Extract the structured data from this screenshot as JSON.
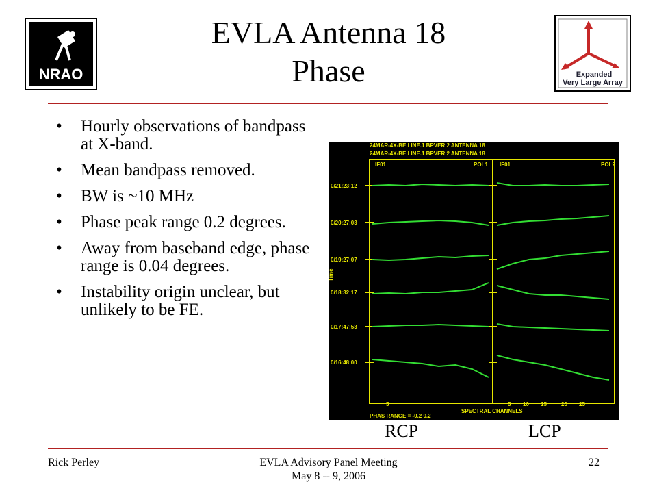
{
  "title": {
    "line1": "EVLA Antenna 18",
    "line2": "Phase"
  },
  "logos": {
    "nrao": "NRAO",
    "evla_line1": "Expanded",
    "evla_line2": "Very Large Array"
  },
  "bullets": [
    "Hourly observations of bandpass at X-band.",
    "Mean bandpass removed.",
    "BW is ~10 MHz",
    "Phase peak range 0.2 degrees.",
    "Away from baseband edge, phase range is 0.04 degrees.",
    "Instability origin unclear, but unlikely to be FE."
  ],
  "plot": {
    "header_top": "24MAR-4X-BE.LINE.1 BPVER 2 ANTENNA 18",
    "if_left": "IF01",
    "pol_left": "POL1",
    "if_right": "IF01",
    "pol_right": "POL2",
    "time_labels": [
      "0/21:23:12",
      "0/20:27:03",
      "0/19:27:07",
      "0/18:32:17",
      "0/17:47:53",
      "0/16:48:00"
    ],
    "x_ticks_left": [
      "5"
    ],
    "x_ticks_right": [
      "5",
      "10",
      "15",
      "20",
      "25"
    ],
    "xlabel": "SPECTRAL CHANNELS",
    "range_label": "PHAS RANGE = -0.2 0.2",
    "side_label": "Time"
  },
  "pol_labels": {
    "left": "RCP",
    "right": "LCP"
  },
  "footer": {
    "left": "Rick Perley",
    "center_line1": "EVLA Advisory Panel Meeting",
    "center_line2": "May 8 -- 9, 2006",
    "right": "22"
  },
  "colors": {
    "rule": "#b22222",
    "plot_bg": "#000000",
    "plot_axes": "#e6e600",
    "trace": "#33dd33"
  }
}
